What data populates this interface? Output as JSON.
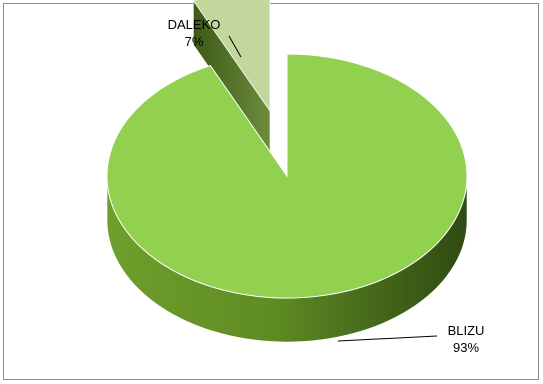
{
  "chart_data": {
    "type": "pie",
    "title": "",
    "slices": [
      {
        "label": "BLIZU",
        "value": 93,
        "value_label": "93%",
        "color": "#92d050"
      },
      {
        "label": "DALEKO",
        "value": 7,
        "value_label": "7%",
        "color": "#c3d69b"
      }
    ],
    "style": "3d-exploded",
    "legend": "none"
  }
}
